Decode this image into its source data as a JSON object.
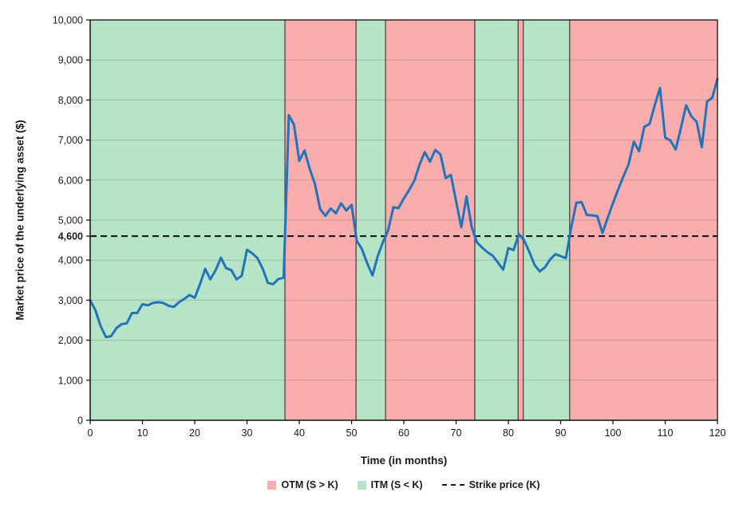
{
  "chart_data": {
    "type": "line",
    "title": "",
    "xlabel": "Time (in months)",
    "ylabel": "Market price of the underlying asset ($)",
    "xlim": [
      0,
      120
    ],
    "ylim": [
      0,
      10000
    ],
    "grid": "horizontal",
    "legend_position": "bottom",
    "x_ticks": [
      0,
      10,
      20,
      30,
      40,
      50,
      60,
      70,
      80,
      90,
      100,
      110,
      120
    ],
    "x_tick_labels": [
      "0",
      "10",
      "20",
      "30",
      "40",
      "50",
      "60",
      "70",
      "80",
      "90",
      "100",
      "110",
      "120"
    ],
    "y_ticks": [
      0,
      1000,
      2000,
      3000,
      4000,
      5000,
      6000,
      7000,
      8000,
      9000,
      10000
    ],
    "y_tick_labels": [
      "0",
      "1,000",
      "2,000",
      "3,000",
      "4,000",
      "5,000",
      "6,000",
      "7,000",
      "8,000",
      "9,000",
      "10,000"
    ],
    "strike": {
      "value": 4600,
      "label": "4,600"
    },
    "series": [
      {
        "name": "Market price of the underlying asset (S)",
        "x_step": 1,
        "values": [
          3000,
          2750,
          2350,
          2080,
          2100,
          2300,
          2400,
          2420,
          2680,
          2680,
          2900,
          2870,
          2930,
          2950,
          2930,
          2860,
          2830,
          2950,
          3030,
          3130,
          3060,
          3400,
          3780,
          3520,
          3750,
          4060,
          3800,
          3750,
          3520,
          3610,
          4260,
          4170,
          4050,
          3790,
          3430,
          3400,
          3530,
          3560,
          7620,
          7380,
          6480,
          6740,
          6280,
          5900,
          5270,
          5110,
          5290,
          5170,
          5420,
          5240,
          5380,
          4480,
          4270,
          3920,
          3620,
          4100,
          4450,
          4750,
          5320,
          5300,
          5540,
          5750,
          5980,
          6380,
          6700,
          6460,
          6750,
          6640,
          6050,
          6130,
          5470,
          4820,
          5590,
          4820,
          4440,
          4310,
          4200,
          4110,
          3940,
          3760,
          4300,
          4250,
          4650,
          4500,
          4210,
          3880,
          3720,
          3820,
          4020,
          4150,
          4100,
          4050,
          4800,
          5430,
          5450,
          5130,
          5120,
          5100,
          4680,
          5060,
          5420,
          5760,
          6090,
          6390,
          6960,
          6720,
          7330,
          7400,
          7870,
          8300,
          7060,
          6990,
          6760,
          7290,
          7870,
          7590,
          7460,
          6820,
          7960,
          8060,
          8530
        ]
      }
    ],
    "regions": [
      {
        "state": "ITM",
        "start": 0,
        "end": 37.26
      },
      {
        "state": "OTM",
        "start": 37.26,
        "end": 50.87
      },
      {
        "state": "ITM",
        "start": 50.87,
        "end": 56.5
      },
      {
        "state": "OTM",
        "start": 56.5,
        "end": 73.58
      },
      {
        "state": "ITM",
        "start": 73.58,
        "end": 81.87
      },
      {
        "state": "OTM",
        "start": 81.87,
        "end": 82.85
      },
      {
        "state": "ITM",
        "start": 82.85,
        "end": 91.73
      },
      {
        "state": "OTM",
        "start": 91.73,
        "end": 120
      }
    ],
    "legend": [
      {
        "label": "OTM (S > K)",
        "swatch": "otm"
      },
      {
        "label": "ITM (S < K)",
        "swatch": "itm"
      },
      {
        "label": "Strike price (K)",
        "swatch": "dash"
      }
    ],
    "colors": {
      "otm_fill": "#F9ADAD",
      "itm_fill": "#B5E4C7",
      "line": "#2273B9",
      "strike": "#1a1a1a",
      "gridline": "rgba(100,100,100,0.30)",
      "region_border": "#4a4040",
      "axis": "#1a1a1a",
      "text": "#1a1a1a"
    }
  }
}
